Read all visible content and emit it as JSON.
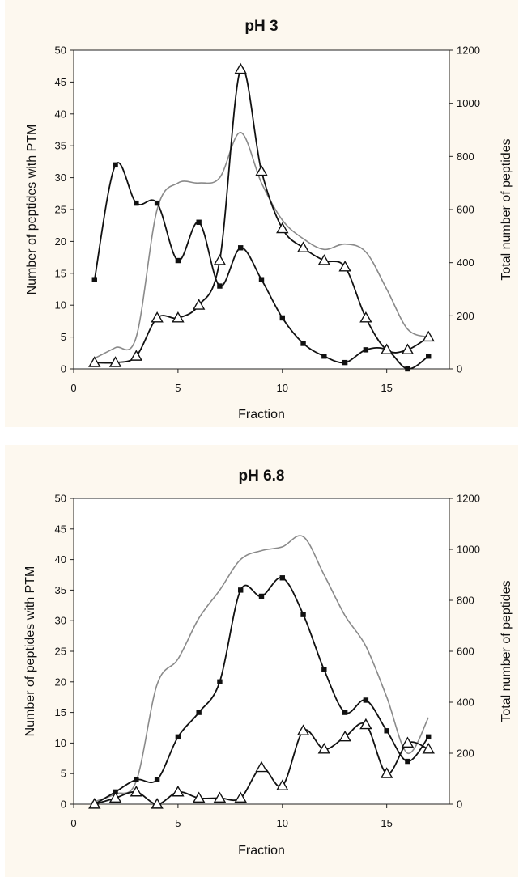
{
  "chart_data": [
    {
      "type": "line",
      "title": "pH 3",
      "xlabel": "Fraction",
      "ylabel": "Number of peptides with PTM",
      "y2label": "Total number of peptides",
      "xlim": [
        0,
        18
      ],
      "ylim": [
        0,
        50
      ],
      "y2lim": [
        0,
        1200
      ],
      "xticks": [
        0,
        5,
        10,
        15
      ],
      "yticks": [
        0,
        5,
        10,
        15,
        20,
        25,
        30,
        35,
        40,
        45,
        50
      ],
      "y2ticks": [
        0,
        200,
        400,
        600,
        800,
        1000,
        1200
      ],
      "grid": false,
      "series": [
        {
          "marker": "square",
          "axis": "left",
          "color": "#111111",
          "x": [
            1,
            2,
            3,
            4,
            5,
            6,
            7,
            8,
            9,
            10,
            11,
            12,
            13,
            14,
            15,
            16,
            17
          ],
          "values": [
            14,
            32,
            26,
            26,
            17,
            23,
            13,
            19,
            14,
            8,
            4,
            2,
            1,
            3,
            3,
            0,
            2
          ]
        },
        {
          "marker": "triangle",
          "axis": "left",
          "color": "#111111",
          "x": [
            1,
            2,
            3,
            4,
            5,
            6,
            7,
            8,
            9,
            10,
            11,
            12,
            13,
            14,
            15,
            16,
            17
          ],
          "values": [
            1,
            1,
            2,
            8,
            8,
            10,
            17,
            47,
            31,
            22,
            19,
            17,
            16,
            8,
            3,
            3,
            5
          ]
        },
        {
          "marker": "none",
          "axis": "right",
          "color": "#8a8a8a",
          "x": [
            1,
            2,
            3,
            4,
            5,
            6,
            7,
            8,
            9,
            10,
            11,
            12,
            13,
            14,
            15,
            16,
            17
          ],
          "values": [
            40,
            80,
            120,
            600,
            700,
            700,
            720,
            890,
            700,
            560,
            490,
            450,
            470,
            440,
            300,
            150,
            120
          ]
        }
      ]
    },
    {
      "type": "line",
      "title": "pH 6.8",
      "xlabel": "Fraction",
      "ylabel": "Number of peptides with PTM",
      "y2label": "Total number of peptides",
      "xlim": [
        0,
        18
      ],
      "ylim": [
        0,
        50
      ],
      "y2lim": [
        0,
        1200
      ],
      "xticks": [
        0,
        5,
        10,
        15
      ],
      "yticks": [
        0,
        5,
        10,
        15,
        20,
        25,
        30,
        35,
        40,
        45,
        50
      ],
      "y2ticks": [
        0,
        200,
        400,
        600,
        800,
        1000,
        1200
      ],
      "grid": false,
      "series": [
        {
          "marker": "square",
          "axis": "left",
          "color": "#111111",
          "x": [
            1,
            2,
            3,
            4,
            5,
            6,
            7,
            8,
            9,
            10,
            11,
            12,
            13,
            14,
            15,
            16,
            17
          ],
          "values": [
            0,
            2,
            4,
            4,
            11,
            15,
            20,
            35,
            34,
            37,
            31,
            22,
            15,
            17,
            12,
            7,
            11
          ]
        },
        {
          "marker": "triangle",
          "axis": "left",
          "color": "#111111",
          "x": [
            1,
            2,
            3,
            4,
            5,
            6,
            7,
            8,
            9,
            10,
            11,
            12,
            13,
            14,
            15,
            16,
            17
          ],
          "values": [
            0,
            1,
            2,
            0,
            2,
            1,
            1,
            1,
            6,
            3,
            12,
            9,
            11,
            13,
            5,
            10,
            9
          ]
        },
        {
          "marker": "none",
          "axis": "right",
          "color": "#8a8a8a",
          "x": [
            1,
            2,
            3,
            4,
            5,
            6,
            7,
            8,
            9,
            10,
            11,
            12,
            13,
            14,
            15,
            16,
            17
          ],
          "values": [
            10,
            40,
            90,
            470,
            570,
            730,
            840,
            960,
            995,
            1010,
            1050,
            900,
            740,
            620,
            420,
            200,
            340
          ]
        }
      ]
    }
  ]
}
